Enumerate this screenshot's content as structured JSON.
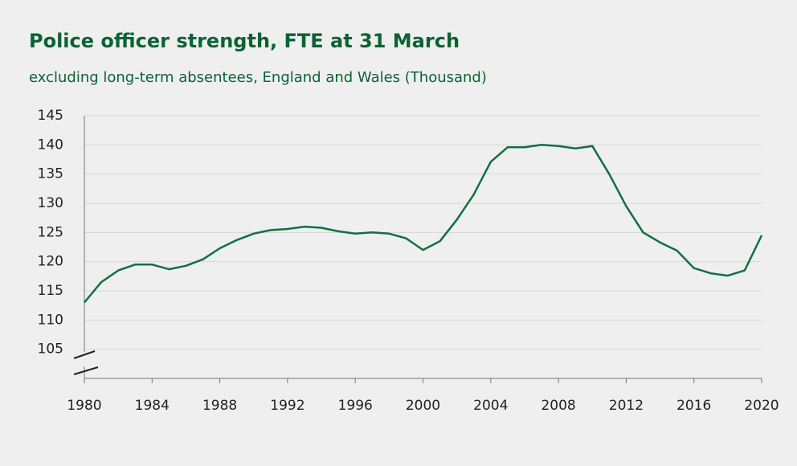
{
  "chart_data": {
    "type": "line",
    "title": "Police officer strength, FTE at 31 March",
    "subtitle": "excluding long-term absentees, England and Wales (Thousand)",
    "x": [
      1980,
      1981,
      1982,
      1983,
      1984,
      1985,
      1986,
      1987,
      1988,
      1989,
      1990,
      1991,
      1992,
      1993,
      1994,
      1995,
      1996,
      1997,
      1998,
      1999,
      2000,
      2001,
      2002,
      2003,
      2004,
      2005,
      2006,
      2007,
      2008,
      2009,
      2010,
      2011,
      2012,
      2013,
      2014,
      2015,
      2016,
      2017,
      2018,
      2019,
      2020
    ],
    "values": [
      113.0,
      116.5,
      118.5,
      119.5,
      119.5,
      118.7,
      119.3,
      120.4,
      122.3,
      123.7,
      124.8,
      125.4,
      125.6,
      126.0,
      125.8,
      125.2,
      124.8,
      125.0,
      124.8,
      124.0,
      122.0,
      123.5,
      127.2,
      131.5,
      137.1,
      139.6,
      139.6,
      140.0,
      139.8,
      139.4,
      139.8,
      135.0,
      129.5,
      125.0,
      123.3,
      121.9,
      118.9,
      118.0,
      117.6,
      118.5,
      124.5
    ],
    "color": "#12703f",
    "xlim": [
      1980,
      2020
    ],
    "xticks": [
      1980,
      1984,
      1988,
      1992,
      1996,
      2000,
      2004,
      2008,
      2012,
      2016,
      2020
    ],
    "ylim": [
      100,
      145
    ],
    "yticks": [
      105,
      110,
      115,
      120,
      125,
      130,
      135,
      140,
      145
    ],
    "grid": true
  }
}
